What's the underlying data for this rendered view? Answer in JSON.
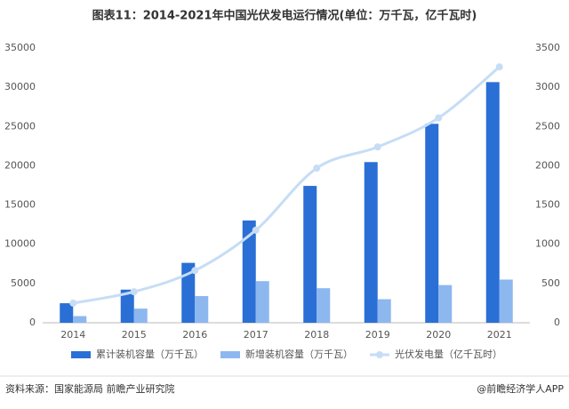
{
  "chart_data": {
    "type": "bar-line",
    "title": "图表11：2014-2021年中国光伏发电运行情况(单位：万千瓦，亿千瓦时)",
    "categories": [
      "2014",
      "2015",
      "2016",
      "2017",
      "2018",
      "2019",
      "2020",
      "2021"
    ],
    "series": [
      {
        "name": "累计装机容量（万千瓦）",
        "color": "#2a6fd5",
        "kind": "bar",
        "values": [
          2486,
          4218,
          7631,
          13025,
          17433,
          20468,
          25343,
          30656
        ]
      },
      {
        "name": "新增装机容量（万千瓦）",
        "color": "#8db7ef",
        "kind": "bar",
        "values": [
          850,
          1800,
          3400,
          5300,
          4400,
          3000,
          4800,
          5500
        ]
      },
      {
        "name": "光伏发电量（亿千瓦时）",
        "color": "#c6ddf5",
        "kind": "line",
        "axis": "y2",
        "values": [
          250,
          395,
          665,
          1180,
          1970,
          2240,
          2610,
          3260
        ]
      }
    ],
    "ylim": [
      0,
      35000
    ],
    "yticks": [
      0,
      5000,
      10000,
      15000,
      20000,
      25000,
      30000,
      35000
    ],
    "y2lim": [
      0,
      3500
    ],
    "y2ticks": [
      0,
      500,
      1000,
      1500,
      2000,
      2500,
      3000,
      3500
    ],
    "source": "资料来源：国家能源局 前瞻产业研究院",
    "credit": "@前瞻经济学人APP"
  }
}
